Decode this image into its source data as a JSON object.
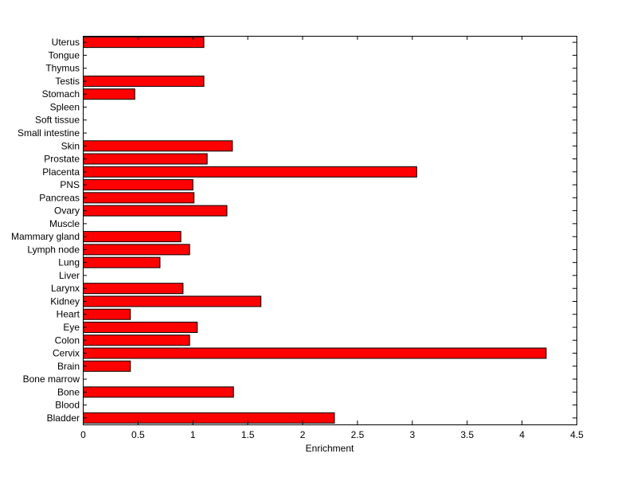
{
  "chart_data": {
    "type": "bar",
    "orientation": "horizontal",
    "categories": [
      "Bladder",
      "Blood",
      "Bone",
      "Bone marrow",
      "Brain",
      "Cervix",
      "Colon",
      "Eye",
      "Heart",
      "Kidney",
      "Larynx",
      "Liver",
      "Lung",
      "Lymph node",
      "Mammary gland",
      "Muscle",
      "Ovary",
      "Pancreas",
      "PNS",
      "Placenta",
      "Prostate",
      "Skin",
      "Small intestine",
      "Soft tissue",
      "Spleen",
      "Stomach",
      "Testis",
      "Thymus",
      "Tongue",
      "Uterus"
    ],
    "values": [
      2.29,
      0,
      1.37,
      0,
      0.43,
      4.22,
      0.97,
      1.04,
      0.43,
      1.62,
      0.91,
      0,
      0.7,
      0.97,
      0.89,
      0,
      1.31,
      1.01,
      1.0,
      3.04,
      1.13,
      1.36,
      0,
      0,
      0,
      0.47,
      1.1,
      0,
      0,
      1.1
    ],
    "xlabel": "Enrichment",
    "ylabel": "",
    "title": "",
    "xlim": [
      0,
      4.5
    ],
    "xticks": [
      "0",
      "0.5",
      "1",
      "1.5",
      "2",
      "2.5",
      "3",
      "3.5",
      "4",
      "4.5"
    ],
    "bar_color": "#ff0000",
    "grid": false,
    "legend": "none"
  }
}
